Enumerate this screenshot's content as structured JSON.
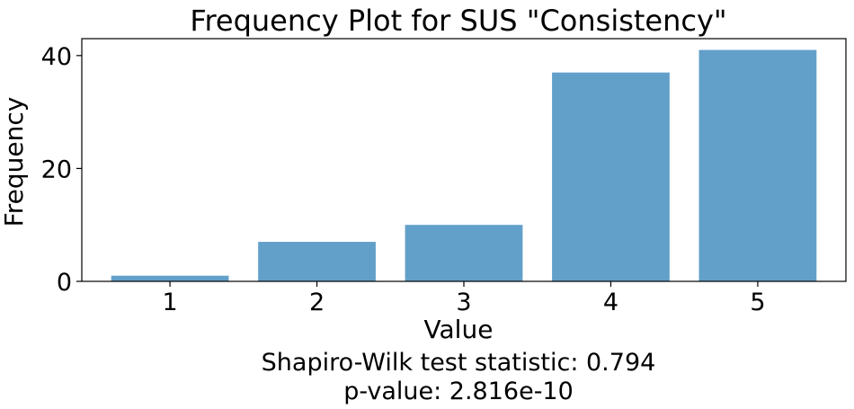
{
  "chart_data": {
    "type": "bar",
    "title": "Frequency Plot for SUS \"Consistency\"",
    "xlabel": "Value",
    "ylabel": "Frequency",
    "categories": [
      "1",
      "2",
      "3",
      "4",
      "5"
    ],
    "values": [
      1,
      7,
      10,
      37,
      41
    ],
    "ylim": [
      0,
      43
    ],
    "yticks": [
      0,
      20,
      40
    ],
    "grid": false,
    "bar_color": "#62a0ca"
  },
  "annotations": {
    "statistic": "Shapiro-Wilk test statistic: 0.794",
    "p_value": "p-value: 2.816e-10"
  }
}
